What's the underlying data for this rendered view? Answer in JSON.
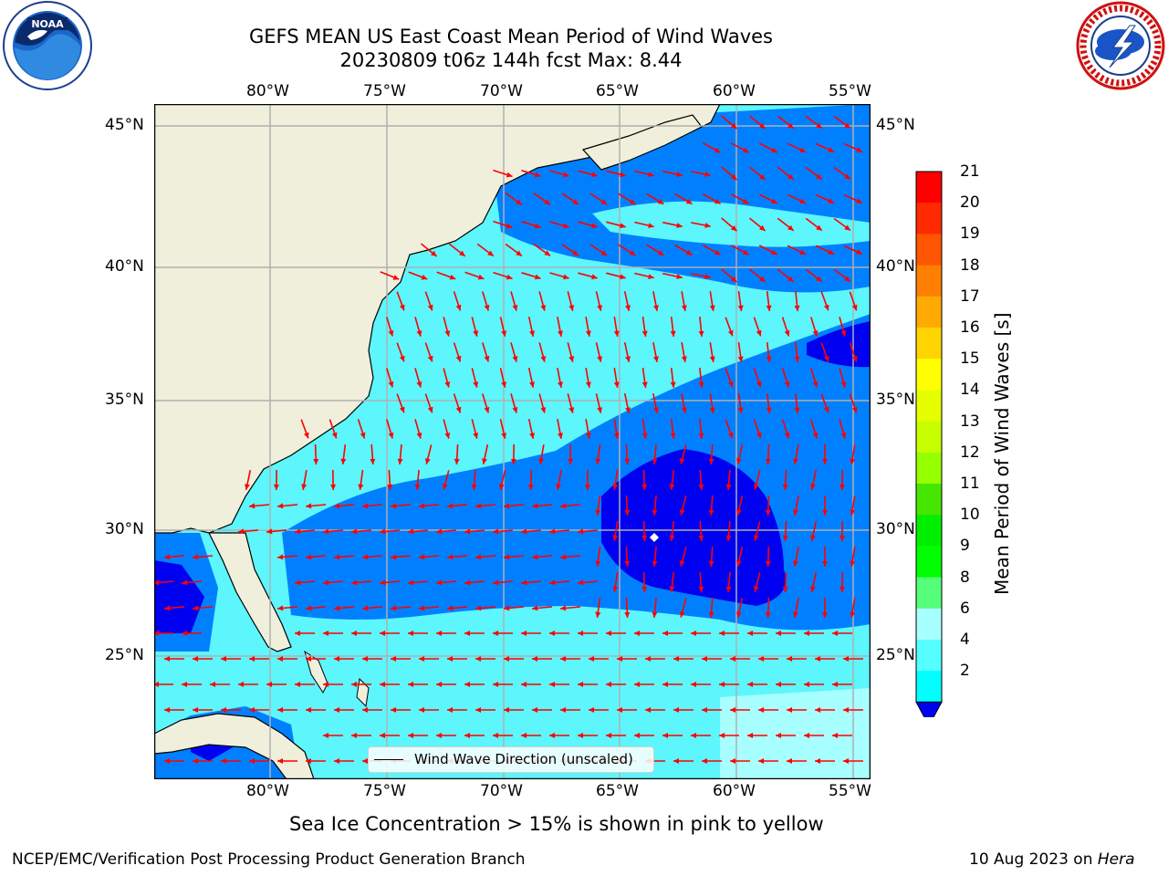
{
  "title": {
    "line1": "GEFS MEAN US East Coast Mean Period of Wind Waves",
    "line2": "20230809 t06z 144h fcst   Max: 8.44"
  },
  "logos": {
    "left_icon": "noaa-logo",
    "right_icon": "nws-logo"
  },
  "map": {
    "lon_labels": [
      "80°W",
      "75°W",
      "70°W",
      "65°W",
      "60°W",
      "55°W"
    ],
    "lat_labels": [
      "45°N",
      "40°N",
      "35°N",
      "30°N",
      "25°N"
    ],
    "legend_label": "Wind Wave Direction (unscaled)",
    "colors": {
      "land": "#efefdc",
      "ocean_light": "#5cf6fc",
      "ocean_mid": "#0080ff",
      "ocean_dark": "#0000f0",
      "arrow": "#ff0000",
      "grid": "#b0b0b0"
    }
  },
  "colorbar": {
    "label": "Mean Period of Wind Waves [s]",
    "ticks": [
      "21",
      "20",
      "19",
      "18",
      "17",
      "16",
      "15",
      "14",
      "13",
      "12",
      "11",
      "10",
      "9",
      "8",
      "6",
      "4",
      "2"
    ],
    "colors": [
      "#ff0000",
      "#ff2a00",
      "#ff5500",
      "#ff8000",
      "#ffaa00",
      "#ffd400",
      "#ffff00",
      "#e5ff00",
      "#c8ff00",
      "#96ff00",
      "#46e600",
      "#00f000",
      "#00ff00",
      "#55ff7a",
      "#a8ffff",
      "#55ffff",
      "#00ffff",
      "#00f0ff",
      "#0080ff"
    ]
  },
  "subtitle": "Sea Ice Concentration > 15% is shown in pink to yellow",
  "footer": {
    "left": "NCEP/EMC/Verification Post Processing Product Generation Branch",
    "right_date": "10 Aug 2023 on",
    "right_host": "Hera"
  }
}
